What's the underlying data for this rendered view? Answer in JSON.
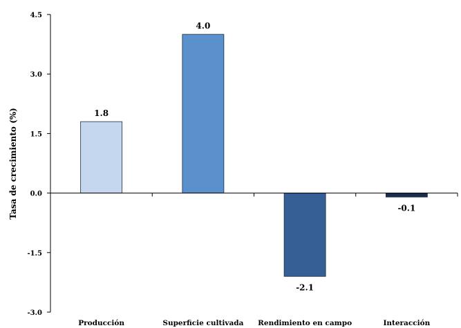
{
  "chart_data": {
    "type": "bar",
    "title": "",
    "xlabel": "",
    "ylabel": "Tasa de crecimiento (%)",
    "ylim": [
      -3.0,
      4.5
    ],
    "yticks": [
      "4.5",
      "3.0",
      "1.5",
      "0.0",
      "-1.5",
      "-3.0"
    ],
    "grid": false,
    "categories": [
      "Producción",
      "Superficie cultivada",
      "Rendimiento en campo",
      "Interacción"
    ],
    "values": [
      1.8,
      4.0,
      -2.1,
      -0.1
    ],
    "value_labels": [
      "1.8",
      "4.0",
      "-2.1",
      "-0.1"
    ],
    "colors": [
      "#c5d7ee",
      "#5a91cc",
      "#355f95",
      "#1d2e4d"
    ]
  }
}
